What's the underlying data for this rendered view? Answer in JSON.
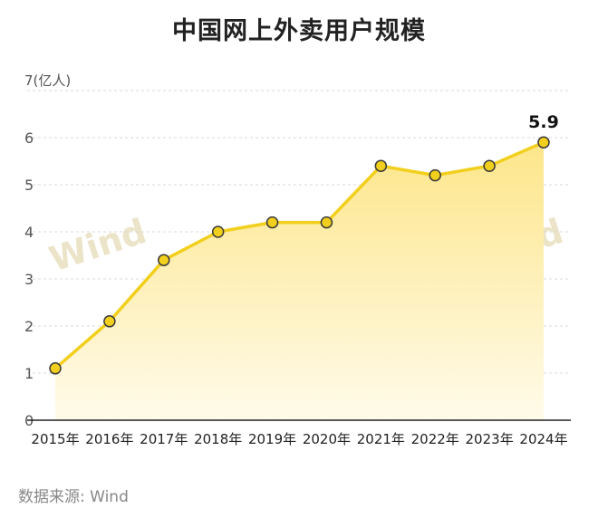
{
  "title": "中国网上外卖用户规模",
  "source": "数据来源: Wind",
  "watermark": "Wind",
  "colors": {
    "line": "#f2cf1c",
    "area_top": "#fde68a",
    "area_bottom": "#fffbea",
    "point_fill": "#f2cf1c",
    "point_stroke": "#3a3a3a",
    "grid": "#d9d9d9",
    "axis": "#222222",
    "tick_text": "#555555",
    "watermark": "#ece4c8"
  },
  "chart_data": {
    "type": "area",
    "ylabel": "7(亿人)",
    "ylim": [
      0,
      7
    ],
    "yticks": [
      "0",
      "1",
      "2",
      "3",
      "4",
      "5",
      "6"
    ],
    "grid": "horizontal-dashed",
    "categories": [
      "2015年",
      "2016年",
      "2017年",
      "2018年",
      "2019年",
      "2020年",
      "2021年",
      "2022年",
      "2023年",
      "2024年"
    ],
    "values": [
      1.1,
      2.1,
      3.4,
      4.0,
      4.2,
      4.2,
      5.4,
      5.2,
      5.4,
      5.9
    ],
    "annotation": {
      "index": 9,
      "text": "5.9"
    }
  }
}
